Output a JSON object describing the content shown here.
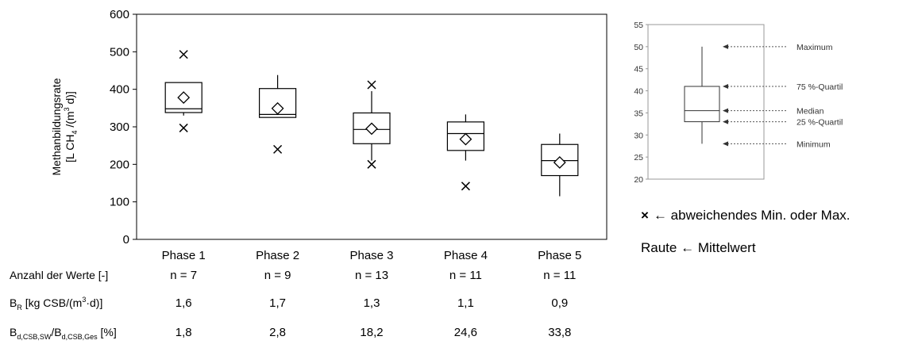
{
  "chart_data": [
    {
      "type": "box",
      "ylabel": {
        "line1": "Methanbildungsrate",
        "line2_prefix": "[L CH",
        "line2_sub": "4",
        "line2_mid": " /(m",
        "line2_sup": "3",
        "line2_suffix": " d)]"
      },
      "ylim": [
        0,
        600
      ],
      "yticks": [
        "0",
        "100",
        "200",
        "300",
        "400",
        "500",
        "600"
      ],
      "grid": false,
      "categories": [
        "Phase 1",
        "Phase 2",
        "Phase 3",
        "Phase 4",
        "Phase 5"
      ],
      "boxes": [
        {
          "whisker_low": 330,
          "q1": 338,
          "median": 348,
          "q3": 418,
          "whisker_high": 418,
          "mean": 378,
          "outliers": [
            493,
            297
          ]
        },
        {
          "whisker_low": 325,
          "q1": 325,
          "median": 333,
          "q3": 402,
          "whisker_high": 438,
          "mean": 349,
          "outliers": [
            240
          ]
        },
        {
          "whisker_low": 210,
          "q1": 255,
          "median": 293,
          "q3": 337,
          "whisker_high": 395,
          "mean": 295,
          "outliers": [
            412,
            200
          ]
        },
        {
          "whisker_low": 210,
          "q1": 237,
          "median": 282,
          "q3": 313,
          "whisker_high": 333,
          "mean": 267,
          "outliers": [
            142
          ]
        },
        {
          "whisker_low": 115,
          "q1": 170,
          "median": 210,
          "q3": 253,
          "whisker_high": 282,
          "mean": 205,
          "outliers": []
        }
      ]
    },
    {
      "type": "box",
      "title": "",
      "ylim": [
        20,
        55
      ],
      "yticks": [
        "20",
        "25",
        "30",
        "35",
        "40",
        "45",
        "50",
        "55"
      ],
      "box": {
        "whisker_low": 28,
        "q1": 33,
        "median": 35.5,
        "q3": 41,
        "whisker_high": 50
      },
      "annotations": [
        {
          "label": "Maximum",
          "value": 50
        },
        {
          "label": "75 %-Quartil",
          "value": 41
        },
        {
          "label": "Median",
          "value": 35.5
        },
        {
          "label": "25 %-Quartil",
          "value": 33
        },
        {
          "label": "Minimum",
          "value": 28
        }
      ]
    }
  ],
  "table": {
    "rows": [
      {
        "label": "Anzahl der Werte [-]",
        "values": [
          "n = 7",
          "n = 9",
          "n = 13",
          "n =  11",
          "n =  11"
        ]
      },
      {
        "label_main": "B",
        "label_sub": "R",
        "label_rest": " [kg CSB/(m",
        "label_sup": "3",
        "label_end": "·d)]",
        "values": [
          "1,6",
          "1,7",
          "1,3",
          "1,1",
          "0,9"
        ]
      },
      {
        "label_b1": "B",
        "label_sub1": "d,CSB,SW",
        "label_mid": "/B",
        "label_sub2": "d,CSB,Ges",
        "label_end": " [%]",
        "values": [
          "1,8",
          "2,8",
          "18,2",
          "24,6",
          "33,8"
        ]
      }
    ]
  },
  "legend_notes": {
    "outlier_symbol": "×",
    "outlier_text": "← abweichendes Min. oder Max.",
    "mean_word": "Raute",
    "mean_text": " ← Mittelwert"
  }
}
